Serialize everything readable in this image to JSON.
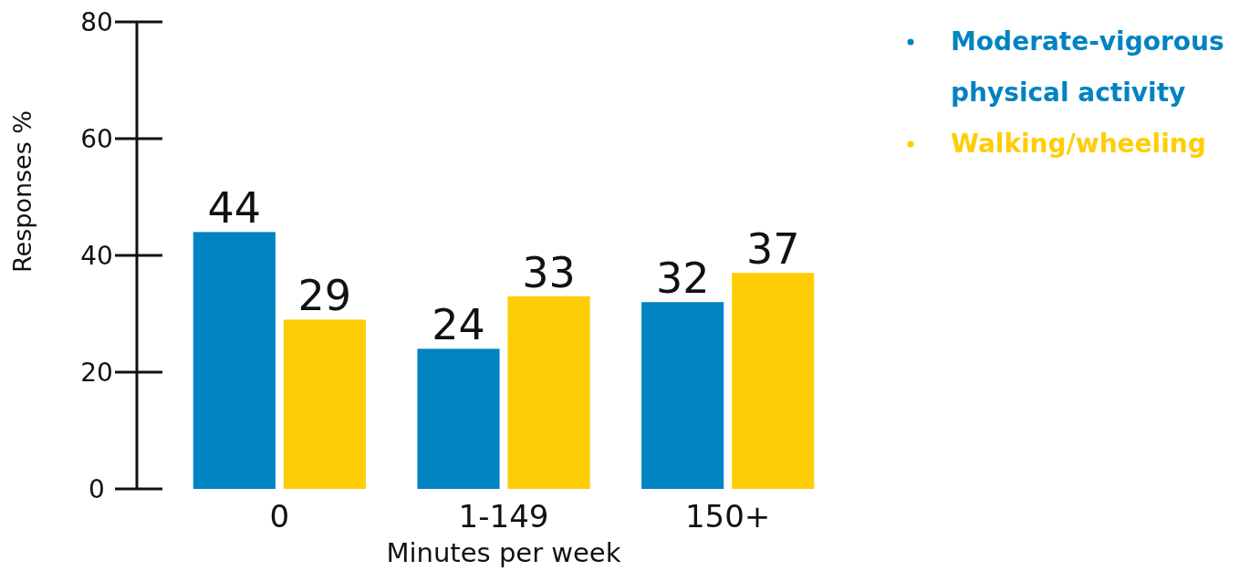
{
  "chart_data": {
    "type": "bar",
    "xlabel": "Minutes per week",
    "ylabel": "Responses %",
    "categories": [
      "0",
      "1-149",
      "150+"
    ],
    "series": [
      {
        "name": "Moderate-vigorous physical activity",
        "color": "#0083c1",
        "values": [
          44,
          24,
          32
        ]
      },
      {
        "name": "Walking/wheeling",
        "color": "#ffcd05",
        "values": [
          29,
          33,
          37
        ]
      }
    ],
    "ylim": [
      0,
      80
    ],
    "yticks": [
      0,
      20,
      40,
      60,
      80
    ],
    "data_labels": true,
    "legend": "top right",
    "grid": false
  }
}
